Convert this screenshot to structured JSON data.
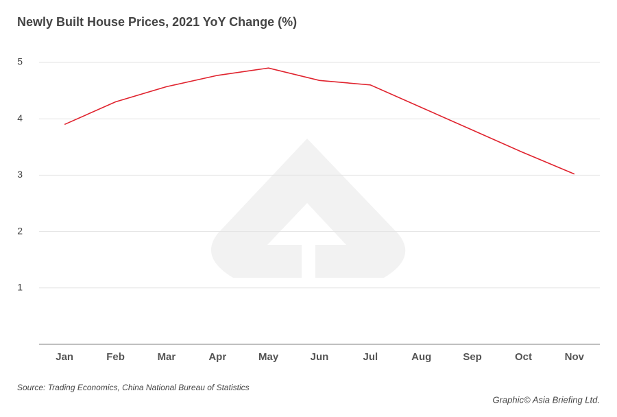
{
  "chart_data": {
    "type": "line",
    "title": "Newly Built House Prices, 2021 YoY Change (%)",
    "categories": [
      "Jan",
      "Feb",
      "Mar",
      "Apr",
      "May",
      "Jun",
      "Jul",
      "Aug",
      "Sep",
      "Oct",
      "Nov"
    ],
    "series": [
      {
        "name": "YoY Change",
        "color": "#e0232e",
        "values": [
          3.9,
          4.3,
          4.57,
          4.77,
          4.9,
          4.68,
          4.6,
          4.2,
          3.8,
          3.4,
          3.02
        ]
      }
    ],
    "ylim": [
      0,
      5
    ],
    "yticks": [
      1,
      2,
      3,
      4,
      5
    ],
    "grid": true,
    "source": "Source: Trading Economics, China National Bureau of Statistics",
    "credit": "Graphic© Asia Briefing Ltd."
  }
}
